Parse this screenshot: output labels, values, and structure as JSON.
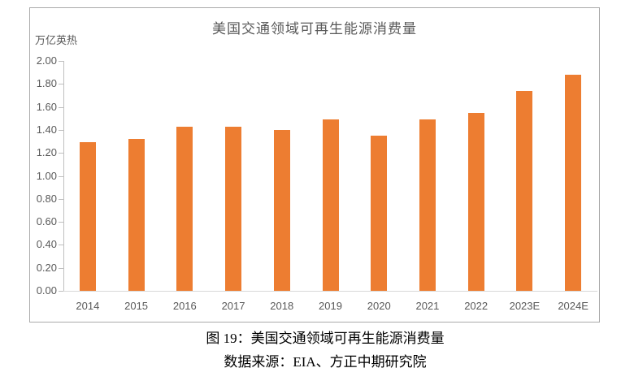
{
  "chart": {
    "colors": {
      "bar": "#ED7D31",
      "axis_line": "#BFBFBF",
      "baseline": "#D9D9D9",
      "label_text": "#595959",
      "border": "#ABABAB"
    }
  },
  "chart_data": {
    "type": "bar",
    "title": "美国交通领域可再生能源消费量",
    "ylabel": "万亿英热",
    "xlabel": "",
    "categories": [
      "2014",
      "2015",
      "2016",
      "2017",
      "2018",
      "2019",
      "2020",
      "2021",
      "2022",
      "2023E",
      "2024E"
    ],
    "values": [
      1.29,
      1.32,
      1.43,
      1.43,
      1.4,
      1.49,
      1.35,
      1.49,
      1.55,
      1.74,
      1.88
    ],
    "ylim": [
      0.0,
      2.0
    ],
    "ytick_step": 0.2,
    "ytick_format_decimals": 2,
    "grid": false,
    "legend": null
  },
  "caption": {
    "figure_label": "图 19：美国交通领域可再生能源消费量",
    "data_source": "数据来源：EIA、方正中期研究院"
  }
}
